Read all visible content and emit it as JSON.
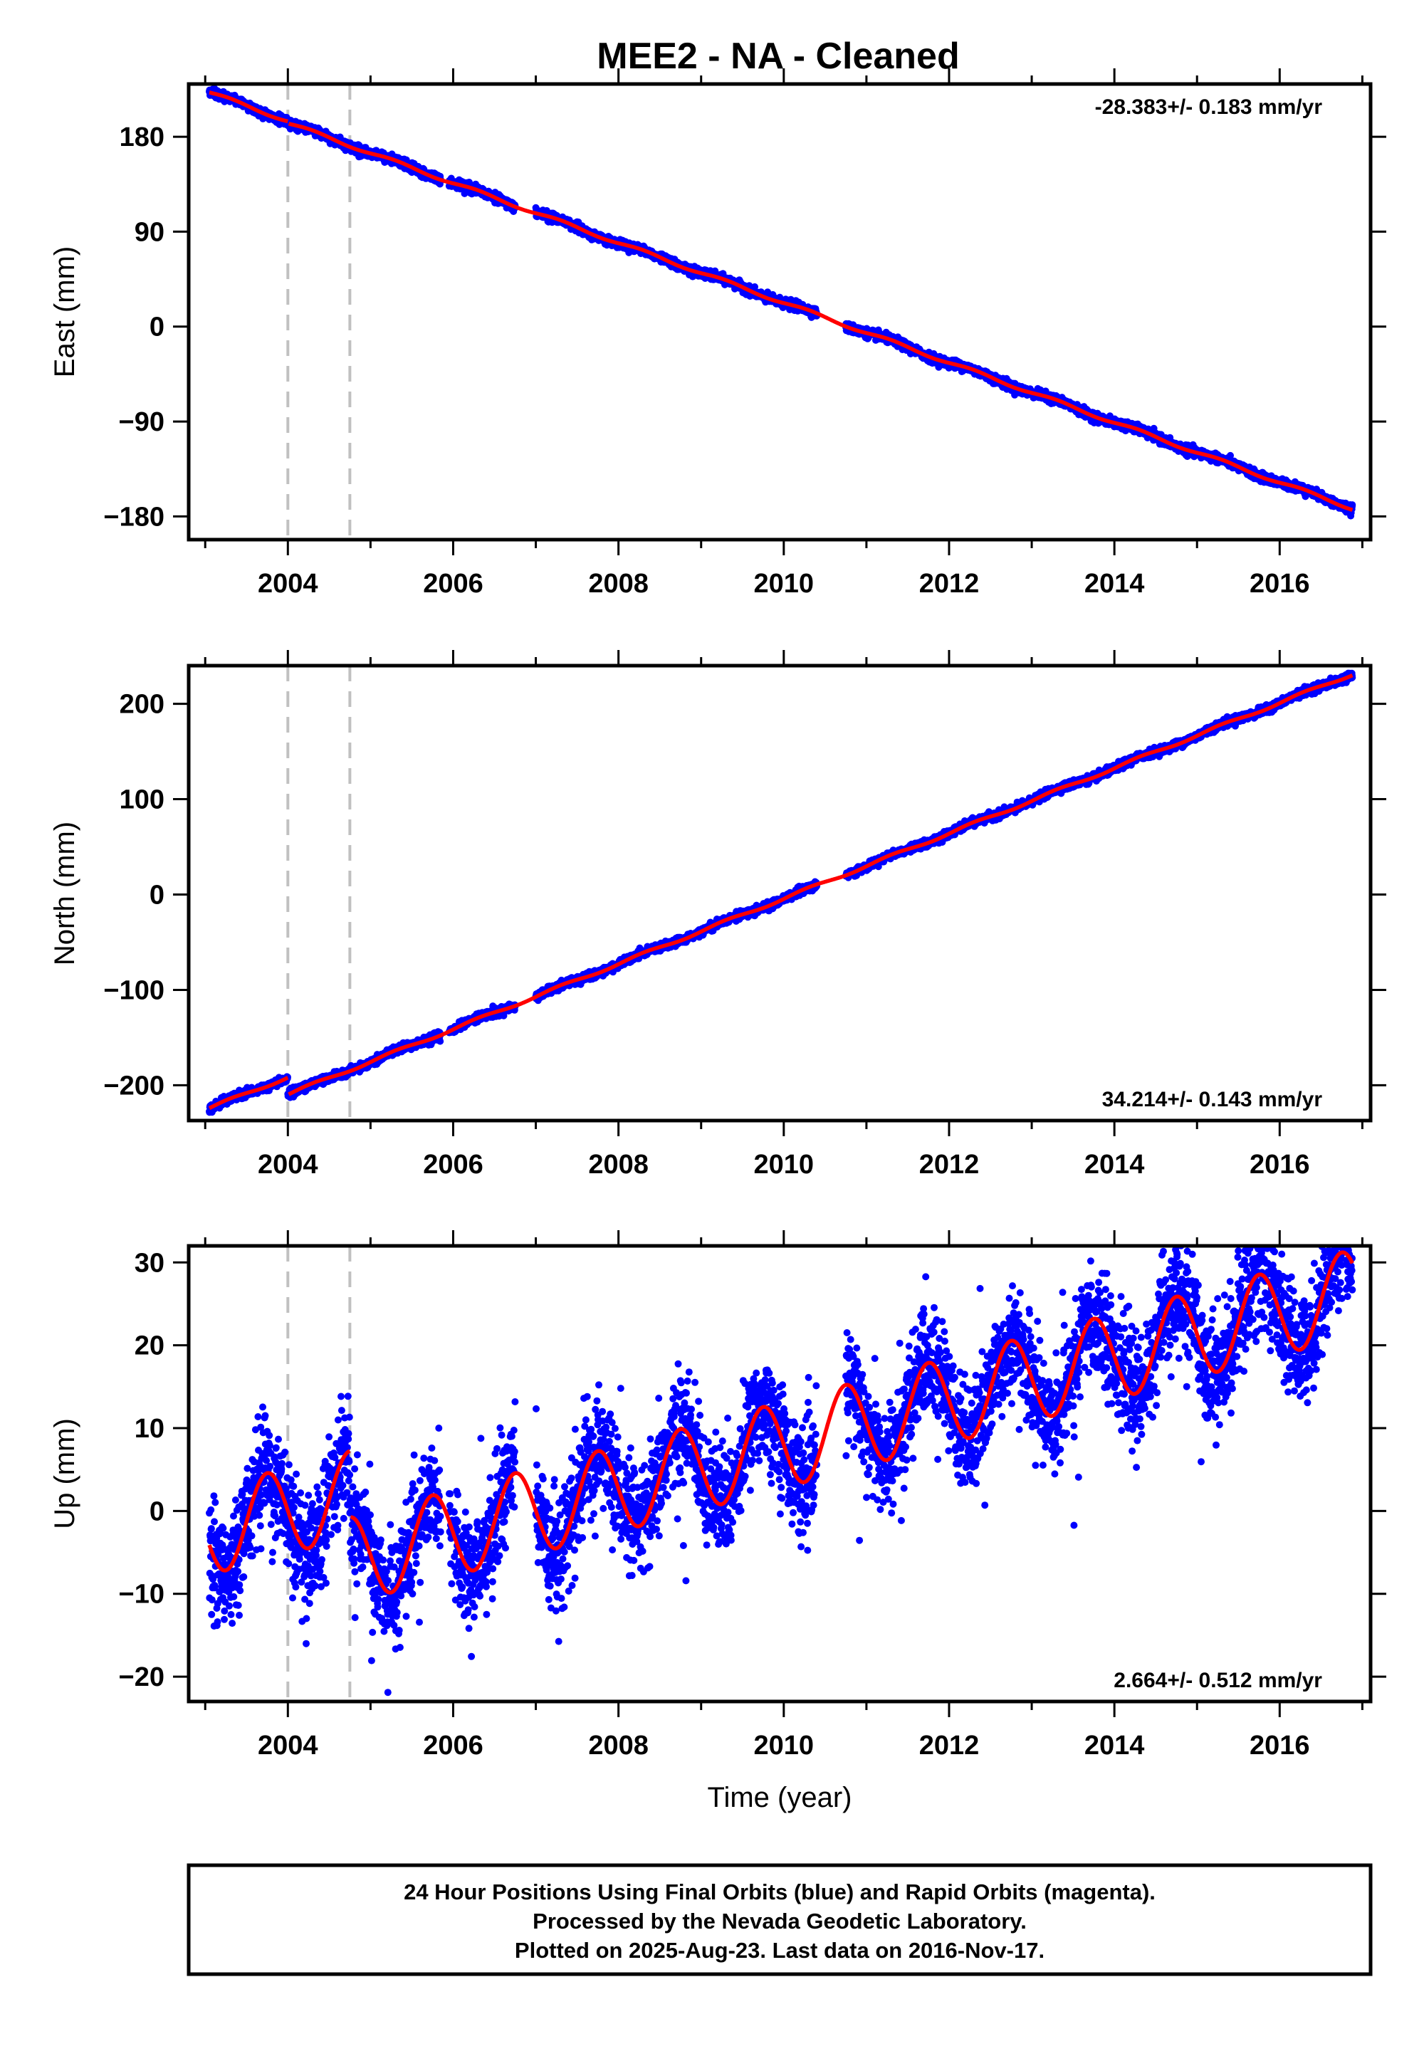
{
  "title": "MEE2  - NA - Cleaned",
  "colors": {
    "final_orbits": "#0000ff",
    "rapid_orbits": "#ff00ff",
    "model": "#ff0000",
    "breaks": "#c0c0c0"
  },
  "footer": {
    "lines": [
      "24 Hour Positions Using Final Orbits (blue) and Rapid Orbits (magenta).",
      "Processed by the Nevada Geodetic Laboratory.",
      "Plotted on 2025-Aug-23. Last data on 2016-Nov-17."
    ]
  },
  "chart_data": [
    {
      "type": "scatter",
      "name": "east",
      "ylabel": "East (mm)",
      "xlabel": "",
      "rate_label": "-28.383+/- 0.183 mm/yr",
      "rate_position": "top-right",
      "xlim": [
        2002.8,
        2017.1
      ],
      "ylim": [
        -202,
        230
      ],
      "xticks": [
        2004,
        2006,
        2008,
        2010,
        2012,
        2014,
        2016
      ],
      "xtick_labels": [
        "2004",
        "2006",
        "2008",
        "2010",
        "2012",
        "2014",
        "2016"
      ],
      "yticks": [
        -180,
        -90,
        0,
        90,
        180
      ],
      "ytick_labels": [
        "−180",
        "−90",
        "0",
        "90",
        "180"
      ],
      "break_lines": [
        2004.0,
        2004.75
      ],
      "data_range": [
        2003.05,
        2016.88
      ],
      "gaps": [
        [
          2005.85,
          2005.95
        ],
        [
          2006.75,
          2007.0
        ],
        [
          2010.4,
          2010.75
        ]
      ],
      "model": {
        "start_value": 222,
        "rate": -28.383,
        "annual_amp": 1.5,
        "annual_phase": 0.0,
        "offsets": [
          {
            "t": 2004.0,
            "dy": -2
          }
        ]
      },
      "noise_std": 2.0
    },
    {
      "type": "scatter",
      "name": "north",
      "ylabel": "North (mm)",
      "xlabel": "",
      "rate_label": "34.214+/- 0.143 mm/yr",
      "rate_position": "bottom-right",
      "xlim": [
        2002.8,
        2017.1
      ],
      "ylim": [
        -237,
        240
      ],
      "xticks": [
        2004,
        2006,
        2008,
        2010,
        2012,
        2014,
        2016
      ],
      "xtick_labels": [
        "2004",
        "2006",
        "2008",
        "2010",
        "2012",
        "2014",
        "2016"
      ],
      "yticks": [
        -200,
        -100,
        0,
        100,
        200
      ],
      "ytick_labels": [
        "−200",
        "−100",
        "0",
        "100",
        "200"
      ],
      "break_lines": [
        2004.0,
        2004.75
      ],
      "data_range": [
        2003.05,
        2016.88
      ],
      "gaps": [
        [
          2005.85,
          2005.95
        ],
        [
          2006.75,
          2007.0
        ],
        [
          2010.4,
          2010.75
        ]
      ],
      "model": {
        "start_value": -224,
        "rate": 34.214,
        "annual_amp": 1.5,
        "annual_phase": 0.0,
        "offsets": [
          {
            "t": 2004.0,
            "dy": -18
          }
        ]
      },
      "noise_std": 2.0
    },
    {
      "type": "scatter",
      "name": "up",
      "ylabel": "Up (mm)",
      "xlabel": "Time (year)",
      "rate_label": "2.664+/- 0.512 mm/yr",
      "rate_position": "bottom-right",
      "xlim": [
        2002.8,
        2017.1
      ],
      "ylim": [
        -23,
        32
      ],
      "xticks": [
        2004,
        2006,
        2008,
        2010,
        2012,
        2014,
        2016
      ],
      "xtick_labels": [
        "2004",
        "2006",
        "2008",
        "2010",
        "2012",
        "2014",
        "2016"
      ],
      "yticks": [
        -20,
        -10,
        0,
        10,
        20,
        30
      ],
      "ytick_labels": [
        "−20",
        "−10",
        "0",
        "10",
        "20",
        "30"
      ],
      "break_lines": [
        2004.0,
        2004.75
      ],
      "data_range": [
        2003.05,
        2016.88
      ],
      "gaps": [
        [
          2005.85,
          2005.95
        ],
        [
          2006.75,
          2007.0
        ],
        [
          2010.4,
          2010.75
        ]
      ],
      "model": {
        "start_value": -2.5,
        "rate": 2.664,
        "annual_amp": 5.2,
        "annual_phase": 0.55,
        "offsets": [
          {
            "t": 2004.75,
            "dy": -8
          }
        ]
      },
      "noise_std": 3.2
    }
  ]
}
